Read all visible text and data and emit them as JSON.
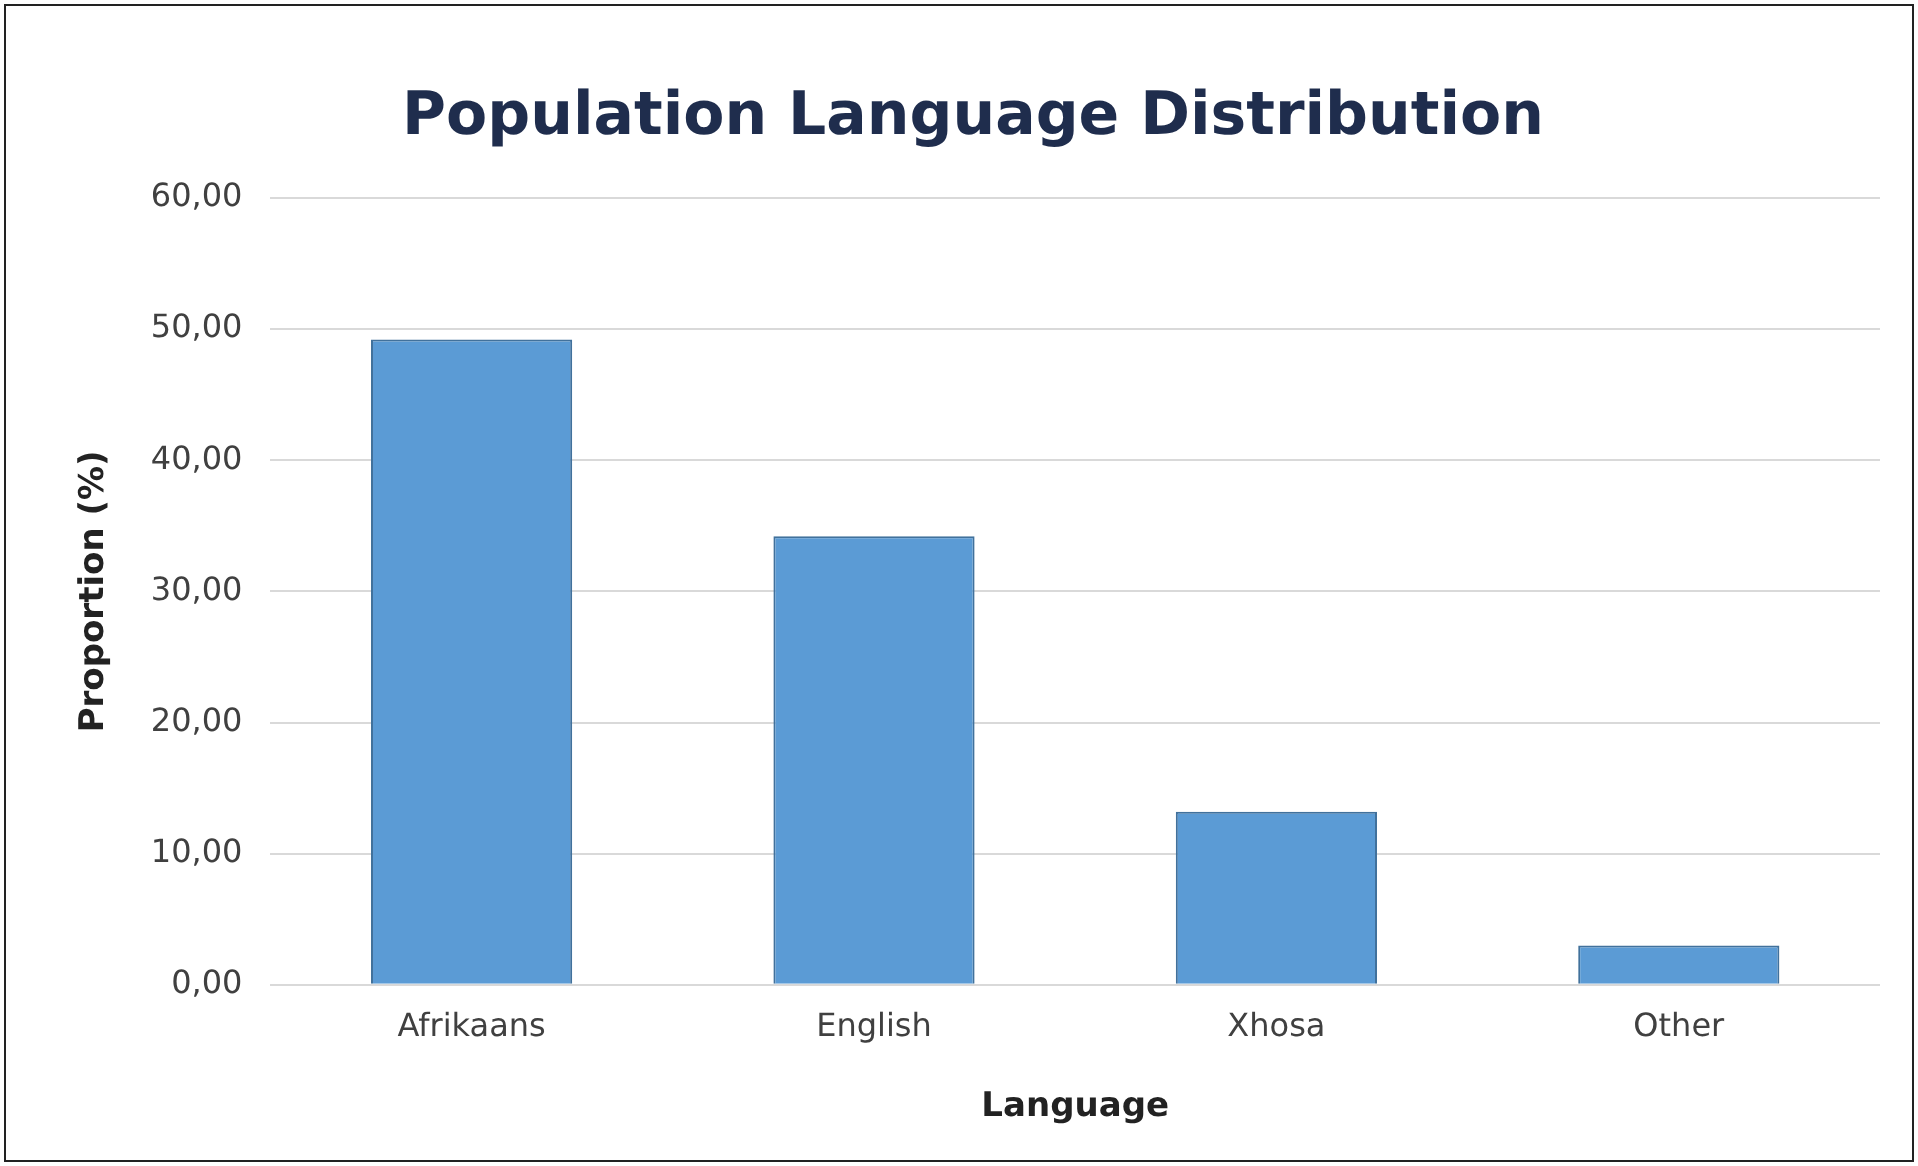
{
  "chart_data": {
    "type": "bar",
    "title": "Population Language Distribution",
    "xlabel": "Language",
    "ylabel": "Proportion (%)",
    "categories": [
      "Afrikaans",
      "English",
      "Xhosa",
      "Other"
    ],
    "values": [
      49.2,
      34.2,
      13.2,
      3.0
    ],
    "color": "#5b9bd5",
    "ylim": [
      0,
      60
    ],
    "yticks": [
      {
        "value": 0,
        "label": "0,00"
      },
      {
        "value": 10,
        "label": "10,00"
      },
      {
        "value": 20,
        "label": "20,00"
      },
      {
        "value": 30,
        "label": "30,00"
      },
      {
        "value": 40,
        "label": "40,00"
      },
      {
        "value": 50,
        "label": "50,00"
      },
      {
        "value": 60,
        "label": "60,00"
      }
    ],
    "grid": "y",
    "legend": false
  }
}
